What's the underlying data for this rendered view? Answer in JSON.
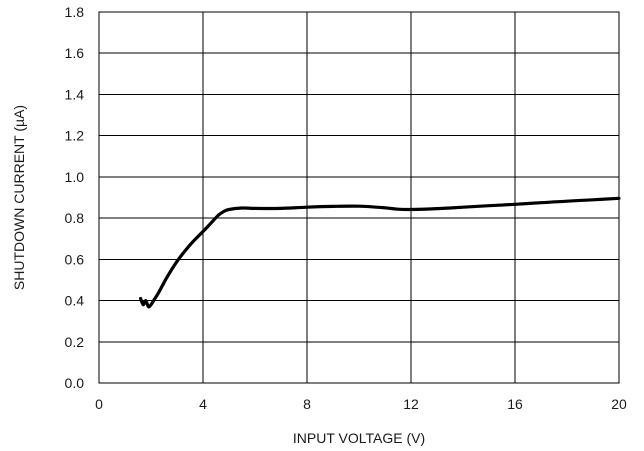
{
  "chart_data": {
    "type": "line",
    "xlabel": "INPUT VOLTAGE (V)",
    "ylabel": "SHUTDOWN CURRENT (µA)",
    "xlim": [
      0,
      20
    ],
    "ylim": [
      0,
      1.8
    ],
    "x_ticks": [
      0,
      4,
      8,
      12,
      16,
      20
    ],
    "y_ticks": [
      0.0,
      0.2,
      0.4,
      0.6,
      0.8,
      1.0,
      1.2,
      1.4,
      1.6,
      1.8
    ],
    "x_tick_labels": [
      "0",
      "4",
      "8",
      "12",
      "16",
      "20"
    ],
    "y_tick_labels": [
      "0.0",
      "0.2",
      "0.4",
      "0.6",
      "0.8",
      "1.0",
      "1.2",
      "1.4",
      "1.6",
      "1.8"
    ],
    "grid": true,
    "line_color": "#000000",
    "series": [
      {
        "x": [
          1.6,
          1.7,
          1.8,
          1.9,
          2.0,
          2.1,
          2.3,
          2.6,
          3.0,
          3.5,
          4.0,
          4.3,
          4.6,
          4.8,
          5.0,
          5.5,
          6.0,
          7.0,
          8.0,
          9.0,
          10.0,
          11.0,
          11.5,
          12.0,
          13.0,
          14.0,
          15.0,
          16.0,
          17.0,
          18.0,
          19.0,
          20.0
        ],
        "y": [
          0.41,
          0.38,
          0.4,
          0.37,
          0.38,
          0.4,
          0.44,
          0.51,
          0.59,
          0.67,
          0.735,
          0.775,
          0.815,
          0.832,
          0.842,
          0.849,
          0.847,
          0.847,
          0.853,
          0.857,
          0.858,
          0.85,
          0.843,
          0.842,
          0.846,
          0.853,
          0.86,
          0.867,
          0.875,
          0.882,
          0.889,
          0.896
        ]
      }
    ]
  }
}
